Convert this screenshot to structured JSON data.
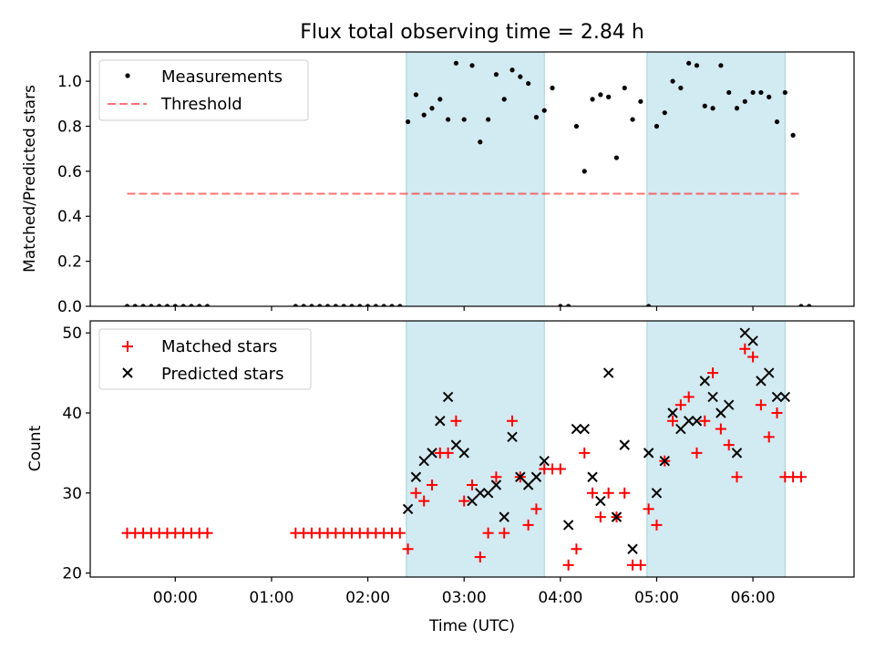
{
  "chart_data": [
    {
      "type": "scatter",
      "title": "Flux total observing time = 2.84 h",
      "xlabel": "",
      "ylabel": "Matched/Predicted stars",
      "ylim": [
        0,
        1.13
      ],
      "xlim": [
        "23:07",
        "07:03"
      ],
      "yticks": [
        "0.0",
        "0.2",
        "0.4",
        "0.6",
        "0.8",
        "1.0"
      ],
      "legend": "top-left",
      "shaded_ranges": [
        [
          "02:24",
          "03:50"
        ],
        [
          "04:54",
          "06:20"
        ]
      ],
      "threshold": {
        "name": "Threshold",
        "x": [
          "23:30",
          "06:30"
        ],
        "y": 0.5
      },
      "series": [
        {
          "name": "Measurements",
          "points": [
            [
              "23:30",
              0
            ],
            [
              "23:35",
              0
            ],
            [
              "23:40",
              0
            ],
            [
              "23:45",
              0
            ],
            [
              "23:50",
              0
            ],
            [
              "23:55",
              0
            ],
            [
              "00:00",
              0
            ],
            [
              "00:05",
              0
            ],
            [
              "00:10",
              0
            ],
            [
              "00:15",
              0
            ],
            [
              "00:20",
              0
            ],
            [
              "01:15",
              0
            ],
            [
              "01:20",
              0
            ],
            [
              "01:25",
              0
            ],
            [
              "01:30",
              0
            ],
            [
              "01:35",
              0
            ],
            [
              "01:40",
              0
            ],
            [
              "01:45",
              0
            ],
            [
              "01:50",
              0
            ],
            [
              "01:55",
              0
            ],
            [
              "02:00",
              0
            ],
            [
              "02:05",
              0
            ],
            [
              "02:10",
              0
            ],
            [
              "02:15",
              0
            ],
            [
              "02:20",
              0
            ],
            [
              "02:25",
              0.82
            ],
            [
              "02:30",
              0.94
            ],
            [
              "02:35",
              0.85
            ],
            [
              "02:40",
              0.88
            ],
            [
              "02:45",
              0.92
            ],
            [
              "02:50",
              0.83
            ],
            [
              "02:55",
              1.08
            ],
            [
              "03:00",
              0.83
            ],
            [
              "03:05",
              1.07
            ],
            [
              "03:10",
              0.73
            ],
            [
              "03:15",
              0.83
            ],
            [
              "03:20",
              1.03
            ],
            [
              "03:25",
              0.92
            ],
            [
              "03:30",
              1.05
            ],
            [
              "03:35",
              1.02
            ],
            [
              "03:40",
              0.99
            ],
            [
              "03:45",
              0.84
            ],
            [
              "03:50",
              0.87
            ],
            [
              "03:55",
              0.97
            ],
            [
              "04:00",
              0
            ],
            [
              "04:05",
              0
            ],
            [
              "04:10",
              0.8
            ],
            [
              "04:15",
              0.6
            ],
            [
              "04:20",
              0.92
            ],
            [
              "04:25",
              0.94
            ],
            [
              "04:30",
              0.93
            ],
            [
              "04:35",
              0.66
            ],
            [
              "04:40",
              0.97
            ],
            [
              "04:45",
              0.83
            ],
            [
              "04:50",
              0.91
            ],
            [
              "04:55",
              0
            ],
            [
              "05:00",
              0.8
            ],
            [
              "05:05",
              0.86
            ],
            [
              "05:10",
              1.0
            ],
            [
              "05:15",
              0.97
            ],
            [
              "05:20",
              1.08
            ],
            [
              "05:25",
              1.07
            ],
            [
              "05:30",
              0.89
            ],
            [
              "05:35",
              0.88
            ],
            [
              "05:40",
              1.07
            ],
            [
              "05:45",
              0.95
            ],
            [
              "05:50",
              0.88
            ],
            [
              "05:55",
              0.91
            ],
            [
              "06:00",
              0.95
            ],
            [
              "06:05",
              0.95
            ],
            [
              "06:10",
              0.93
            ],
            [
              "06:15",
              0.82
            ],
            [
              "06:20",
              0.95
            ],
            [
              "06:25",
              0.76
            ],
            [
              "06:30",
              0
            ],
            [
              "06:35",
              0
            ]
          ]
        }
      ]
    },
    {
      "type": "scatter",
      "title": "",
      "xlabel": "Time (UTC)",
      "ylabel": "Count",
      "ylim": [
        19.5,
        51.5
      ],
      "xlim": [
        "23:07",
        "07:03"
      ],
      "xticks": [
        "00:00",
        "01:00",
        "02:00",
        "03:00",
        "04:00",
        "05:00",
        "06:00"
      ],
      "yticks": [
        "20",
        "30",
        "40",
        "50"
      ],
      "legend": "top-left",
      "shaded_ranges": [
        [
          "02:24",
          "03:50"
        ],
        [
          "04:54",
          "06:20"
        ]
      ],
      "series": [
        {
          "name": "Matched stars",
          "color": "#ff0000",
          "marker": "plus",
          "points": [
            [
              "23:30",
              25
            ],
            [
              "23:35",
              25
            ],
            [
              "23:40",
              25
            ],
            [
              "23:45",
              25
            ],
            [
              "23:50",
              25
            ],
            [
              "23:55",
              25
            ],
            [
              "00:00",
              25
            ],
            [
              "00:05",
              25
            ],
            [
              "00:10",
              25
            ],
            [
              "00:15",
              25
            ],
            [
              "00:20",
              25
            ],
            [
              "01:15",
              25
            ],
            [
              "01:20",
              25
            ],
            [
              "01:25",
              25
            ],
            [
              "01:30",
              25
            ],
            [
              "01:35",
              25
            ],
            [
              "01:40",
              25
            ],
            [
              "01:45",
              25
            ],
            [
              "01:50",
              25
            ],
            [
              "01:55",
              25
            ],
            [
              "02:00",
              25
            ],
            [
              "02:05",
              25
            ],
            [
              "02:10",
              25
            ],
            [
              "02:15",
              25
            ],
            [
              "02:20",
              25
            ],
            [
              "02:25",
              23
            ],
            [
              "02:30",
              30
            ],
            [
              "02:35",
              29
            ],
            [
              "02:40",
              31
            ],
            [
              "02:45",
              35
            ],
            [
              "02:50",
              35
            ],
            [
              "02:55",
              39
            ],
            [
              "03:00",
              29
            ],
            [
              "03:05",
              31
            ],
            [
              "03:10",
              22
            ],
            [
              "03:15",
              25
            ],
            [
              "03:20",
              32
            ],
            [
              "03:25",
              25
            ],
            [
              "03:30",
              39
            ],
            [
              "03:35",
              32
            ],
            [
              "03:40",
              26
            ],
            [
              "03:45",
              28
            ],
            [
              "03:50",
              33
            ],
            [
              "03:55",
              33
            ],
            [
              "04:00",
              33
            ],
            [
              "04:05",
              21
            ],
            [
              "04:10",
              23
            ],
            [
              "04:15",
              35
            ],
            [
              "04:20",
              30
            ],
            [
              "04:25",
              27
            ],
            [
              "04:30",
              30
            ],
            [
              "04:35",
              27
            ],
            [
              "04:40",
              30
            ],
            [
              "04:45",
              21
            ],
            [
              "04:50",
              21
            ],
            [
              "04:55",
              28
            ],
            [
              "05:00",
              26
            ],
            [
              "05:05",
              34
            ],
            [
              "05:10",
              39
            ],
            [
              "05:15",
              41
            ],
            [
              "05:20",
              42
            ],
            [
              "05:25",
              35
            ],
            [
              "05:30",
              39
            ],
            [
              "05:35",
              45
            ],
            [
              "05:40",
              38
            ],
            [
              "05:45",
              36
            ],
            [
              "05:50",
              32
            ],
            [
              "05:55",
              48
            ],
            [
              "06:00",
              47
            ],
            [
              "06:05",
              41
            ],
            [
              "06:10",
              37
            ],
            [
              "06:15",
              40
            ],
            [
              "06:20",
              32
            ],
            [
              "06:25",
              32
            ],
            [
              "06:30",
              32
            ]
          ]
        },
        {
          "name": "Predicted stars",
          "color": "#000000",
          "marker": "x",
          "points": [
            [
              "02:25",
              28
            ],
            [
              "02:30",
              32
            ],
            [
              "02:35",
              34
            ],
            [
              "02:40",
              35
            ],
            [
              "02:45",
              39
            ],
            [
              "02:50",
              42
            ],
            [
              "02:55",
              36
            ],
            [
              "03:00",
              35
            ],
            [
              "03:05",
              29
            ],
            [
              "03:10",
              30
            ],
            [
              "03:15",
              30
            ],
            [
              "03:20",
              31
            ],
            [
              "03:25",
              27
            ],
            [
              "03:30",
              37
            ],
            [
              "03:35",
              32
            ],
            [
              "03:40",
              31
            ],
            [
              "03:45",
              32
            ],
            [
              "03:50",
              34
            ],
            [
              "04:05",
              26
            ],
            [
              "04:10",
              38
            ],
            [
              "04:15",
              38
            ],
            [
              "04:20",
              32
            ],
            [
              "04:25",
              29
            ],
            [
              "04:30",
              45
            ],
            [
              "04:35",
              27
            ],
            [
              "04:40",
              36
            ],
            [
              "04:45",
              23
            ],
            [
              "04:55",
              35
            ],
            [
              "05:00",
              30
            ],
            [
              "05:05",
              34
            ],
            [
              "05:10",
              40
            ],
            [
              "05:15",
              38
            ],
            [
              "05:20",
              39
            ],
            [
              "05:25",
              39
            ],
            [
              "05:30",
              44
            ],
            [
              "05:35",
              42
            ],
            [
              "05:40",
              40
            ],
            [
              "05:45",
              41
            ],
            [
              "05:50",
              35
            ],
            [
              "05:55",
              50
            ],
            [
              "06:00",
              49
            ],
            [
              "06:05",
              44
            ],
            [
              "06:10",
              45
            ],
            [
              "06:15",
              42
            ],
            [
              "06:20",
              42
            ]
          ]
        }
      ]
    }
  ]
}
